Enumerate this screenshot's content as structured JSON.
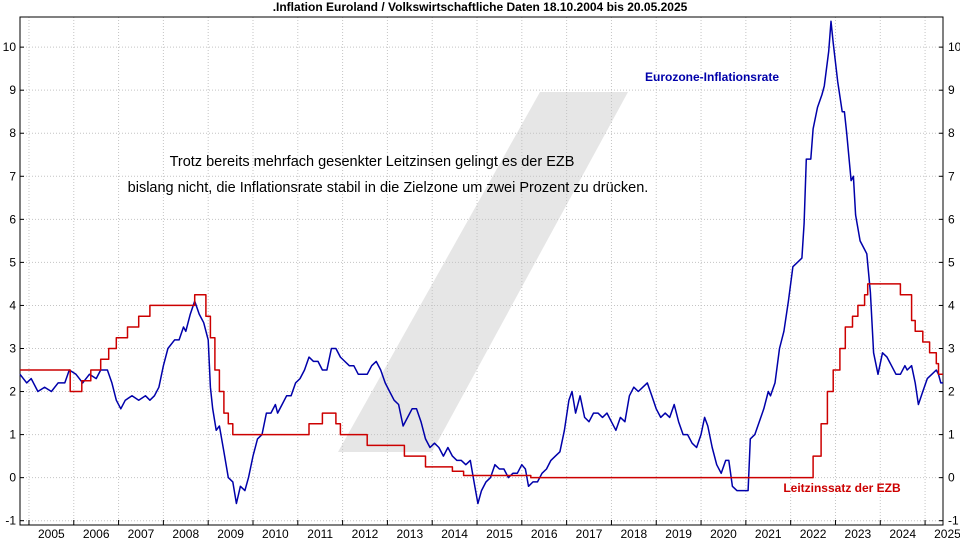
{
  "chart_data": {
    "type": "line",
    "title": ".Inflation Euroland / Volkswirtschaftliche Daten 18.10.2004 bis 20.05.2025",
    "xlabel": "",
    "ylabel": "",
    "xlim": [
      2004.8,
      2025.4
    ],
    "ylim": [
      -1.1,
      10.7
    ],
    "y_ticks": [
      -1,
      0,
      1,
      2,
      3,
      4,
      5,
      6,
      7,
      8,
      9,
      10
    ],
    "x_ticks": [
      "2005",
      "2006",
      "2007",
      "2008",
      "2009",
      "2010",
      "2011",
      "2012",
      "2013",
      "2014",
      "2015",
      "2016",
      "2017",
      "2018",
      "2019",
      "2020",
      "2021",
      "2022",
      "2023",
      "2024",
      "2025"
    ],
    "grid": true,
    "annotation": [
      "Trotz bereits mehrfach gesenkter Leitzinsen gelingt es der EZB",
      "bislang nicht, die Inflationsrate stabil in die Zielzone um zwei Prozent zu drücken."
    ],
    "series": [
      {
        "name": "Eurozone-Inflationsrate",
        "color": "#0000aa",
        "points": [
          [
            2004.8,
            2.4
          ],
          [
            2004.95,
            2.2
          ],
          [
            2005.05,
            2.3
          ],
          [
            2005.2,
            2.0
          ],
          [
            2005.35,
            2.1
          ],
          [
            2005.5,
            2.0
          ],
          [
            2005.65,
            2.2
          ],
          [
            2005.8,
            2.2
          ],
          [
            2005.9,
            2.5
          ],
          [
            2006.05,
            2.4
          ],
          [
            2006.2,
            2.2
          ],
          [
            2006.35,
            2.4
          ],
          [
            2006.5,
            2.3
          ],
          [
            2006.6,
            2.5
          ],
          [
            2006.75,
            2.5
          ],
          [
            2006.85,
            2.2
          ],
          [
            2006.95,
            1.8
          ],
          [
            2007.05,
            1.6
          ],
          [
            2007.15,
            1.8
          ],
          [
            2007.3,
            1.9
          ],
          [
            2007.45,
            1.8
          ],
          [
            2007.6,
            1.9
          ],
          [
            2007.7,
            1.8
          ],
          [
            2007.8,
            1.9
          ],
          [
            2007.9,
            2.1
          ],
          [
            2008.0,
            2.6
          ],
          [
            2008.1,
            3.0
          ],
          [
            2008.25,
            3.2
          ],
          [
            2008.35,
            3.2
          ],
          [
            2008.45,
            3.5
          ],
          [
            2008.5,
            3.4
          ],
          [
            2008.6,
            3.8
          ],
          [
            2008.7,
            4.1
          ],
          [
            2008.8,
            3.8
          ],
          [
            2008.9,
            3.6
          ],
          [
            2009.0,
            3.2
          ],
          [
            2009.05,
            2.1
          ],
          [
            2009.1,
            1.6
          ],
          [
            2009.18,
            1.1
          ],
          [
            2009.25,
            1.2
          ],
          [
            2009.35,
            0.6
          ],
          [
            2009.45,
            0.0
          ],
          [
            2009.55,
            -0.1
          ],
          [
            2009.63,
            -0.6
          ],
          [
            2009.72,
            -0.2
          ],
          [
            2009.82,
            -0.3
          ],
          [
            2009.9,
            0.0
          ],
          [
            2010.0,
            0.5
          ],
          [
            2010.1,
            0.9
          ],
          [
            2010.2,
            1.0
          ],
          [
            2010.3,
            1.5
          ],
          [
            2010.4,
            1.5
          ],
          [
            2010.5,
            1.7
          ],
          [
            2010.55,
            1.5
          ],
          [
            2010.65,
            1.7
          ],
          [
            2010.75,
            1.9
          ],
          [
            2010.85,
            1.9
          ],
          [
            2010.95,
            2.2
          ],
          [
            2011.05,
            2.3
          ],
          [
            2011.15,
            2.5
          ],
          [
            2011.25,
            2.8
          ],
          [
            2011.35,
            2.7
          ],
          [
            2011.45,
            2.7
          ],
          [
            2011.55,
            2.5
          ],
          [
            2011.65,
            2.5
          ],
          [
            2011.75,
            3.0
          ],
          [
            2011.85,
            3.0
          ],
          [
            2011.95,
            2.8
          ],
          [
            2012.05,
            2.7
          ],
          [
            2012.15,
            2.6
          ],
          [
            2012.25,
            2.6
          ],
          [
            2012.35,
            2.4
          ],
          [
            2012.45,
            2.4
          ],
          [
            2012.55,
            2.4
          ],
          [
            2012.65,
            2.6
          ],
          [
            2012.75,
            2.7
          ],
          [
            2012.85,
            2.5
          ],
          [
            2012.95,
            2.2
          ],
          [
            2013.05,
            2.0
          ],
          [
            2013.15,
            1.8
          ],
          [
            2013.25,
            1.7
          ],
          [
            2013.35,
            1.2
          ],
          [
            2013.45,
            1.4
          ],
          [
            2013.55,
            1.6
          ],
          [
            2013.65,
            1.6
          ],
          [
            2013.75,
            1.3
          ],
          [
            2013.85,
            0.9
          ],
          [
            2013.95,
            0.7
          ],
          [
            2014.05,
            0.8
          ],
          [
            2014.15,
            0.7
          ],
          [
            2014.25,
            0.5
          ],
          [
            2014.35,
            0.7
          ],
          [
            2014.45,
            0.5
          ],
          [
            2014.55,
            0.4
          ],
          [
            2014.65,
            0.4
          ],
          [
            2014.75,
            0.3
          ],
          [
            2014.85,
            0.4
          ],
          [
            2014.95,
            -0.2
          ],
          [
            2015.02,
            -0.6
          ],
          [
            2015.1,
            -0.3
          ],
          [
            2015.2,
            -0.1
          ],
          [
            2015.3,
            0.0
          ],
          [
            2015.4,
            0.3
          ],
          [
            2015.5,
            0.2
          ],
          [
            2015.6,
            0.2
          ],
          [
            2015.7,
            0.0
          ],
          [
            2015.8,
            0.1
          ],
          [
            2015.9,
            0.1
          ],
          [
            2016.0,
            0.3
          ],
          [
            2016.08,
            0.2
          ],
          [
            2016.15,
            -0.2
          ],
          [
            2016.25,
            -0.1
          ],
          [
            2016.35,
            -0.1
          ],
          [
            2016.45,
            0.1
          ],
          [
            2016.55,
            0.2
          ],
          [
            2016.65,
            0.4
          ],
          [
            2016.75,
            0.5
          ],
          [
            2016.85,
            0.6
          ],
          [
            2016.95,
            1.1
          ],
          [
            2017.05,
            1.8
          ],
          [
            2017.12,
            2.0
          ],
          [
            2017.2,
            1.5
          ],
          [
            2017.3,
            1.9
          ],
          [
            2017.4,
            1.4
          ],
          [
            2017.5,
            1.3
          ],
          [
            2017.6,
            1.5
          ],
          [
            2017.7,
            1.5
          ],
          [
            2017.8,
            1.4
          ],
          [
            2017.9,
            1.5
          ],
          [
            2018.0,
            1.3
          ],
          [
            2018.1,
            1.1
          ],
          [
            2018.2,
            1.4
          ],
          [
            2018.3,
            1.3
          ],
          [
            2018.4,
            1.9
          ],
          [
            2018.5,
            2.1
          ],
          [
            2018.6,
            2.0
          ],
          [
            2018.7,
            2.1
          ],
          [
            2018.8,
            2.2
          ],
          [
            2018.9,
            1.9
          ],
          [
            2019.0,
            1.6
          ],
          [
            2019.1,
            1.4
          ],
          [
            2019.2,
            1.5
          ],
          [
            2019.3,
            1.4
          ],
          [
            2019.4,
            1.7
          ],
          [
            2019.5,
            1.3
          ],
          [
            2019.6,
            1.0
          ],
          [
            2019.7,
            1.0
          ],
          [
            2019.8,
            0.8
          ],
          [
            2019.9,
            0.7
          ],
          [
            2020.0,
            1.0
          ],
          [
            2020.08,
            1.4
          ],
          [
            2020.15,
            1.2
          ],
          [
            2020.25,
            0.7
          ],
          [
            2020.35,
            0.3
          ],
          [
            2020.45,
            0.1
          ],
          [
            2020.55,
            0.4
          ],
          [
            2020.62,
            0.4
          ],
          [
            2020.7,
            -0.2
          ],
          [
            2020.8,
            -0.3
          ],
          [
            2020.95,
            -0.3
          ],
          [
            2021.05,
            -0.3
          ],
          [
            2021.1,
            0.9
          ],
          [
            2021.2,
            1.0
          ],
          [
            2021.3,
            1.3
          ],
          [
            2021.4,
            1.6
          ],
          [
            2021.5,
            2.0
          ],
          [
            2021.55,
            1.9
          ],
          [
            2021.65,
            2.2
          ],
          [
            2021.75,
            3.0
          ],
          [
            2021.85,
            3.4
          ],
          [
            2021.95,
            4.1
          ],
          [
            2022.05,
            4.9
          ],
          [
            2022.15,
            5.0
          ],
          [
            2022.25,
            5.1
          ],
          [
            2022.3,
            5.9
          ],
          [
            2022.35,
            7.4
          ],
          [
            2022.45,
            7.4
          ],
          [
            2022.5,
            8.1
          ],
          [
            2022.6,
            8.6
          ],
          [
            2022.7,
            8.9
          ],
          [
            2022.75,
            9.1
          ],
          [
            2022.85,
            9.9
          ],
          [
            2022.9,
            10.6
          ],
          [
            2022.95,
            10.1
          ],
          [
            2023.05,
            9.2
          ],
          [
            2023.15,
            8.5
          ],
          [
            2023.2,
            8.5
          ],
          [
            2023.25,
            8.0
          ],
          [
            2023.35,
            6.9
          ],
          [
            2023.4,
            7.0
          ],
          [
            2023.45,
            6.1
          ],
          [
            2023.55,
            5.5
          ],
          [
            2023.65,
            5.3
          ],
          [
            2023.7,
            5.2
          ],
          [
            2023.78,
            4.3
          ],
          [
            2023.85,
            2.9
          ],
          [
            2023.95,
            2.4
          ],
          [
            2024.05,
            2.9
          ],
          [
            2024.15,
            2.8
          ],
          [
            2024.25,
            2.6
          ],
          [
            2024.35,
            2.4
          ],
          [
            2024.45,
            2.4
          ],
          [
            2024.55,
            2.6
          ],
          [
            2024.6,
            2.5
          ],
          [
            2024.7,
            2.6
          ],
          [
            2024.78,
            2.2
          ],
          [
            2024.85,
            1.7
          ],
          [
            2024.95,
            2.0
          ],
          [
            2025.05,
            2.3
          ],
          [
            2025.15,
            2.4
          ],
          [
            2025.25,
            2.5
          ],
          [
            2025.3,
            2.4
          ],
          [
            2025.35,
            2.2
          ],
          [
            2025.4,
            2.2
          ]
        ]
      },
      {
        "name": "Leitzinssatz der EZB",
        "color": "#cc0000",
        "points": [
          [
            2004.8,
            2.5
          ],
          [
            2005.92,
            2.5
          ],
          [
            2005.92,
            2.0
          ],
          [
            2006.18,
            2.0
          ],
          [
            2006.18,
            2.25
          ],
          [
            2006.38,
            2.25
          ],
          [
            2006.38,
            2.5
          ],
          [
            2006.6,
            2.5
          ],
          [
            2006.6,
            2.75
          ],
          [
            2006.78,
            2.75
          ],
          [
            2006.78,
            3.0
          ],
          [
            2006.95,
            3.0
          ],
          [
            2006.95,
            3.25
          ],
          [
            2007.2,
            3.25
          ],
          [
            2007.2,
            3.5
          ],
          [
            2007.45,
            3.5
          ],
          [
            2007.45,
            3.75
          ],
          [
            2007.7,
            3.75
          ],
          [
            2007.7,
            4.0
          ],
          [
            2008.7,
            4.0
          ],
          [
            2008.7,
            4.25
          ],
          [
            2008.95,
            4.25
          ],
          [
            2008.95,
            3.75
          ],
          [
            2009.05,
            3.75
          ],
          [
            2009.05,
            3.25
          ],
          [
            2009.15,
            3.25
          ],
          [
            2009.15,
            2.5
          ],
          [
            2009.25,
            2.5
          ],
          [
            2009.25,
            2.0
          ],
          [
            2009.35,
            2.0
          ],
          [
            2009.35,
            1.5
          ],
          [
            2009.45,
            1.5
          ],
          [
            2009.45,
            1.25
          ],
          [
            2009.55,
            1.25
          ],
          [
            2009.55,
            1.0
          ],
          [
            2011.25,
            1.0
          ],
          [
            2011.25,
            1.25
          ],
          [
            2011.55,
            1.25
          ],
          [
            2011.55,
            1.5
          ],
          [
            2011.85,
            1.5
          ],
          [
            2011.85,
            1.25
          ],
          [
            2011.95,
            1.25
          ],
          [
            2011.95,
            1.0
          ],
          [
            2012.55,
            1.0
          ],
          [
            2012.55,
            0.75
          ],
          [
            2013.38,
            0.75
          ],
          [
            2013.38,
            0.5
          ],
          [
            2013.85,
            0.5
          ],
          [
            2013.85,
            0.25
          ],
          [
            2014.45,
            0.25
          ],
          [
            2014.45,
            0.15
          ],
          [
            2014.7,
            0.15
          ],
          [
            2014.7,
            0.05
          ],
          [
            2016.2,
            0.05
          ],
          [
            2016.2,
            0.0
          ],
          [
            2022.5,
            0.0
          ],
          [
            2022.5,
            0.5
          ],
          [
            2022.68,
            0.5
          ],
          [
            2022.68,
            1.25
          ],
          [
            2022.82,
            1.25
          ],
          [
            2022.82,
            2.0
          ],
          [
            2022.95,
            2.0
          ],
          [
            2022.95,
            2.5
          ],
          [
            2023.1,
            2.5
          ],
          [
            2023.1,
            3.0
          ],
          [
            2023.22,
            3.0
          ],
          [
            2023.22,
            3.5
          ],
          [
            2023.38,
            3.5
          ],
          [
            2023.38,
            3.75
          ],
          [
            2023.5,
            3.75
          ],
          [
            2023.5,
            4.0
          ],
          [
            2023.65,
            4.0
          ],
          [
            2023.65,
            4.25
          ],
          [
            2023.72,
            4.25
          ],
          [
            2023.72,
            4.5
          ],
          [
            2024.45,
            4.5
          ],
          [
            2024.45,
            4.25
          ],
          [
            2024.7,
            4.25
          ],
          [
            2024.7,
            3.65
          ],
          [
            2024.78,
            3.65
          ],
          [
            2024.78,
            3.4
          ],
          [
            2024.95,
            3.4
          ],
          [
            2024.95,
            3.15
          ],
          [
            2025.1,
            3.15
          ],
          [
            2025.1,
            2.9
          ],
          [
            2025.25,
            2.9
          ],
          [
            2025.25,
            2.65
          ],
          [
            2025.3,
            2.65
          ],
          [
            2025.3,
            2.4
          ],
          [
            2025.4,
            2.4
          ]
        ]
      }
    ]
  }
}
